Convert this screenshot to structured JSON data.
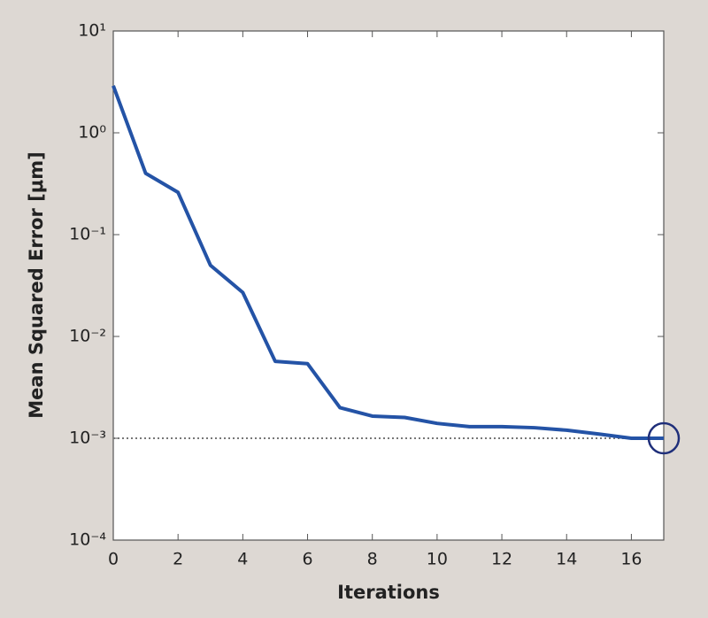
{
  "chart_data": {
    "type": "line",
    "x_label": "Iterations",
    "y_label": "Mean Squared Error [μm]",
    "x": [
      0,
      1,
      2,
      3,
      4,
      5,
      6,
      7,
      8,
      9,
      10,
      11,
      12,
      13,
      14,
      15,
      16,
      17
    ],
    "series": [
      {
        "color": "#2453a6",
        "values": [
          2.9,
          0.4,
          0.26,
          0.05,
          0.027,
          0.0057,
          0.0054,
          0.002,
          0.00165,
          0.0016,
          0.0014,
          0.0013,
          0.0013,
          0.00127,
          0.0012,
          0.0011,
          0.001,
          0.001
        ]
      }
    ],
    "xlim": [
      0,
      17
    ],
    "xticks": [
      0,
      2,
      4,
      6,
      8,
      10,
      12,
      14,
      16
    ],
    "ylim": [
      0.0001,
      10
    ],
    "log_y": true,
    "yticks": [
      {
        "value": 10,
        "label": "10¹"
      },
      {
        "value": 1,
        "label": "10⁰"
      },
      {
        "value": 0.1,
        "label": "10⁻¹"
      },
      {
        "value": 0.01,
        "label": "10⁻²"
      },
      {
        "value": 0.001,
        "label": "10⁻³"
      },
      {
        "value": 0.0001,
        "label": "10⁻⁴"
      }
    ],
    "reference_line": 0.001,
    "highlight_index": 17,
    "highlight_color": "#1f2f7a"
  }
}
